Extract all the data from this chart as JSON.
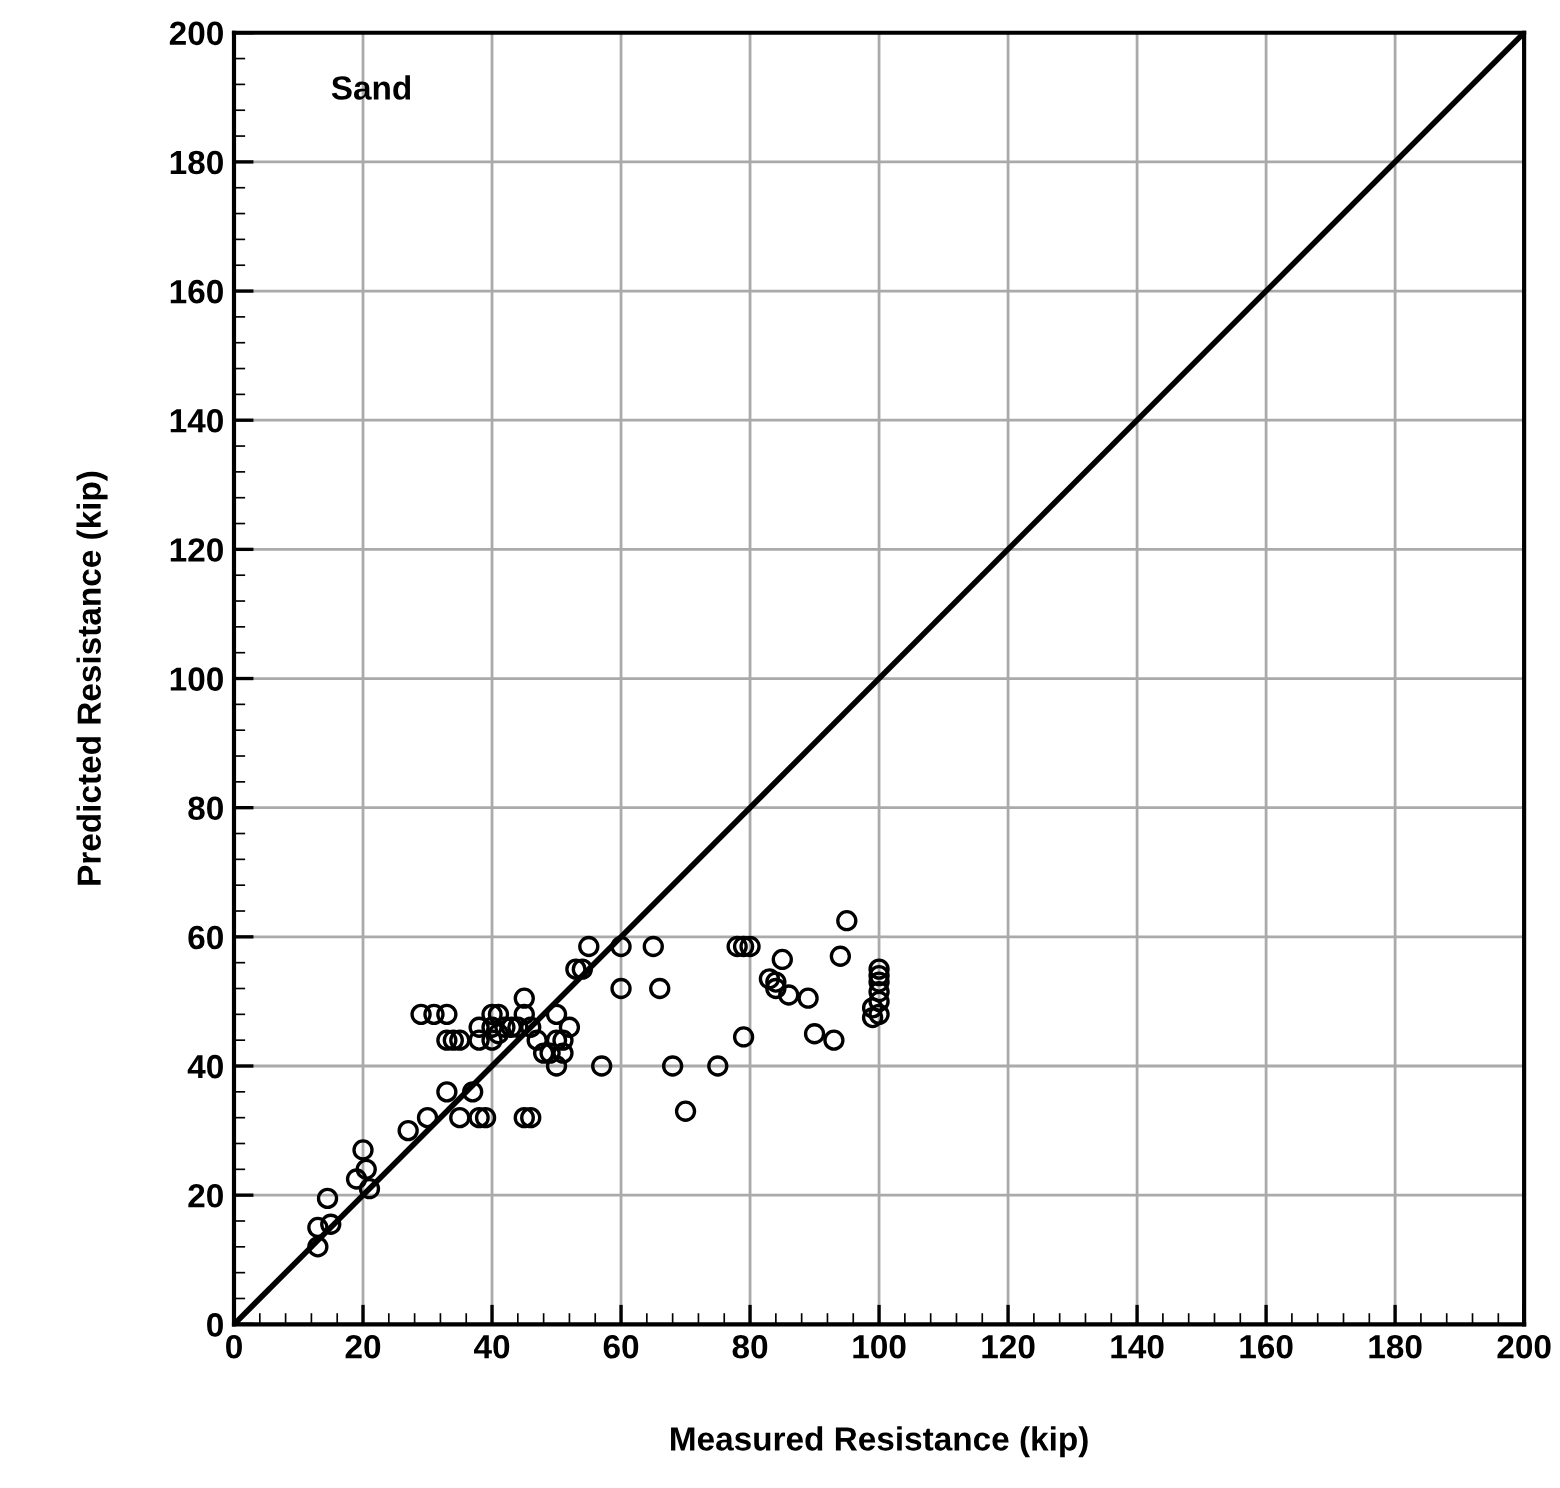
{
  "chart_data": {
    "type": "scatter",
    "xlabel": "Measured Resistance (kip)",
    "ylabel": "Predicted Resistance (kip)",
    "annotations": [
      "Sand"
    ],
    "xlim": [
      0,
      200
    ],
    "ylim": [
      0,
      200
    ],
    "xticks": [
      0,
      20,
      40,
      60,
      80,
      100,
      120,
      140,
      160,
      180,
      200
    ],
    "yticks": [
      0,
      20,
      40,
      60,
      80,
      100,
      120,
      140,
      160,
      180,
      200
    ],
    "grid": true,
    "marker": "circle",
    "series": [
      {
        "color": "#000000",
        "x": [
          13,
          13,
          14.5,
          15,
          19,
          20,
          20.5,
          21,
          27,
          29,
          30,
          31,
          33,
          33,
          33,
          34,
          35,
          35,
          37,
          38,
          38,
          38,
          39,
          40,
          40,
          40,
          41,
          41,
          42,
          43,
          44,
          45,
          45,
          45,
          46,
          46,
          47,
          48,
          49,
          50,
          50,
          50,
          51,
          51,
          52,
          53,
          54,
          55,
          57,
          60,
          60,
          65,
          66,
          68,
          70,
          75,
          78,
          79,
          79,
          80,
          83,
          84,
          84,
          85,
          86,
          89,
          90,
          93,
          94,
          95,
          99,
          99,
          100,
          100,
          100,
          100,
          100,
          100
        ],
        "values": [
          12,
          15,
          19.5,
          15.5,
          22.5,
          27,
          24,
          21,
          30,
          48,
          32,
          48,
          48,
          36,
          44,
          44,
          44,
          32,
          36,
          32,
          44,
          46,
          32,
          44,
          46,
          48,
          48,
          45,
          46,
          46,
          46,
          50.5,
          48,
          32,
          46,
          32,
          44,
          42,
          42,
          44,
          48,
          40,
          42,
          44,
          46,
          55,
          55,
          58.5,
          40,
          58.5,
          52,
          58.5,
          52,
          40,
          33,
          40,
          58.5,
          58.5,
          44.5,
          58.5,
          53.5,
          53,
          52,
          56.5,
          51,
          50.5,
          45,
          44,
          57,
          62.5,
          47.5,
          49,
          48,
          50,
          51.5,
          53,
          54,
          55
        ]
      },
      {
        "type": "line",
        "color": "#000000",
        "marker": "none",
        "line_style": "solid",
        "x": [
          0,
          200
        ],
        "values": [
          0,
          200
        ]
      }
    ]
  }
}
